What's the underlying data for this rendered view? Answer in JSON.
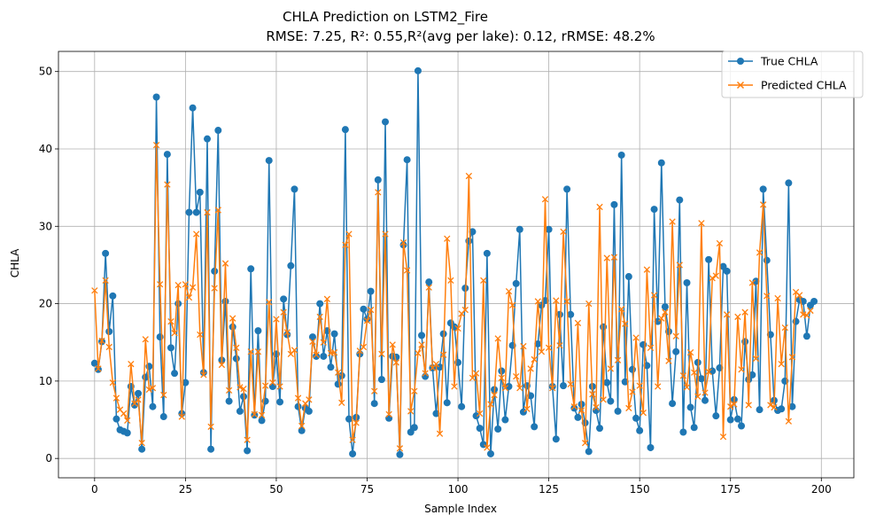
{
  "chart_data": {
    "type": "line",
    "title": "CHLA Prediction on LSTM2_Fire",
    "subtitle": "RMSE: 7.25, R²: 0.55,R²(avg per lake): 0.12, rRMSE: 48.2%",
    "xlabel": "Sample Index",
    "ylabel": "CHLA",
    "xlim": [
      -9.95,
      208.95
    ],
    "ylim": [
      -2.5,
      52.6
    ],
    "xticks": [
      0,
      25,
      50,
      75,
      100,
      125,
      150,
      175,
      200
    ],
    "yticks": [
      0,
      10,
      20,
      30,
      40,
      50
    ],
    "grid": true,
    "legend_position": "top-right",
    "series": [
      {
        "name": "True CHLA",
        "color": "#1f77b4",
        "marker": "circle",
        "values": [
          12.3,
          11.5,
          15.1,
          26.5,
          16.4,
          21.0,
          5.1,
          3.7,
          3.5,
          3.3,
          9.3,
          6.9,
          8.4,
          1.2,
          10.5,
          11.9,
          6.7,
          46.7,
          15.7,
          5.4,
          39.3,
          14.3,
          11.0,
          20.0,
          5.8,
          9.8,
          31.8,
          45.3,
          31.8,
          34.4,
          11.1,
          41.3,
          1.2,
          24.2,
          42.4,
          12.7,
          20.3,
          7.4,
          17.0,
          12.9,
          6.1,
          8.0,
          1.0,
          24.5,
          5.6,
          16.5,
          4.9,
          7.4,
          38.5,
          9.3,
          13.5,
          7.3,
          20.6,
          16.0,
          24.9,
          34.8,
          6.7,
          3.6,
          6.5,
          6.1,
          15.7,
          13.2,
          20.0,
          13.2,
          16.5,
          11.8,
          16.1,
          9.6,
          10.7,
          42.5,
          5.1,
          0.6,
          5.3,
          13.5,
          19.3,
          18.0,
          21.6,
          7.1,
          36.0,
          10.2,
          43.5,
          5.2,
          13.2,
          13.1,
          0.5,
          27.6,
          38.6,
          3.4,
          4.0,
          50.1,
          15.9,
          10.6,
          22.8,
          11.7,
          5.8,
          11.8,
          16.1,
          7.2,
          17.5,
          17.0,
          12.4,
          6.7,
          22.0,
          28.1,
          29.3,
          5.5,
          3.9,
          1.8,
          26.5,
          0.6,
          8.9,
          3.8,
          11.3,
          5.0,
          9.3,
          14.6,
          22.6,
          29.6,
          6.0,
          9.4,
          8.1,
          4.1,
          14.8,
          19.8,
          20.4,
          29.6,
          9.3,
          2.5,
          18.6,
          9.4,
          34.8,
          18.6,
          6.5,
          5.3,
          7.0,
          4.6,
          0.9,
          9.3,
          6.2,
          3.9,
          17.0,
          9.8,
          7.4,
          32.8,
          6.1,
          39.2,
          9.9,
          23.5,
          11.5,
          5.2,
          3.6,
          14.7,
          12.0,
          1.4,
          32.2,
          17.7,
          38.2,
          19.6,
          16.4,
          7.1,
          13.8,
          33.4,
          3.4,
          22.7,
          6.6,
          4.0,
          12.4,
          10.3,
          7.5,
          25.7,
          11.3,
          5.5,
          11.7,
          24.8,
          24.2,
          5.0,
          7.6,
          5.1,
          4.2,
          15.1,
          10.2,
          10.8,
          22.9,
          6.3,
          34.8,
          25.6,
          16.0,
          7.5,
          6.2,
          6.4,
          10.0,
          35.6,
          6.7,
          17.7,
          20.5,
          20.3,
          15.8,
          19.8,
          20.3
        ]
      },
      {
        "name": "Predicted CHLA",
        "color": "#ff7f0e",
        "marker": "x",
        "values": [
          21.7,
          11.6,
          15.2,
          23.0,
          14.4,
          9.8,
          7.8,
          6.3,
          5.8,
          4.9,
          12.2,
          7.1,
          7.6,
          2.0,
          15.4,
          8.9,
          9.1,
          40.5,
          22.5,
          8.2,
          35.4,
          17.7,
          16.2,
          22.4,
          5.4,
          22.5,
          20.8,
          22.1,
          29.0,
          16.0,
          10.8,
          31.8,
          4.1,
          22.0,
          32.1,
          12.1,
          25.2,
          8.8,
          18.1,
          14.3,
          9.2,
          9.0,
          2.4,
          13.8,
          5.7,
          13.8,
          5.6,
          9.4,
          20.2,
          9.8,
          18.0,
          9.3,
          18.9,
          16.3,
          13.5,
          14.0,
          7.8,
          4.2,
          7.1,
          7.6,
          15.1,
          13.4,
          18.3,
          15.0,
          20.6,
          13.6,
          13.7,
          11.1,
          7.2,
          27.6,
          29.0,
          2.4,
          4.6,
          13.9,
          14.4,
          17.8,
          19.2,
          8.7,
          34.4,
          13.5,
          29.0,
          5.7,
          14.7,
          12.4,
          1.3,
          27.9,
          24.3,
          6.1,
          8.7,
          13.6,
          14.7,
          11.0,
          22.1,
          11.7,
          12.2,
          3.2,
          13.4,
          28.4,
          23.0,
          9.3,
          16.8,
          18.7,
          19.2,
          36.5,
          10.4,
          11.0,
          5.8,
          23.0,
          1.4,
          7.0,
          8.2,
          15.5,
          10.4,
          9.1,
          21.6,
          19.8,
          10.6,
          9.1,
          14.5,
          6.4,
          11.6,
          12.8,
          20.3,
          13.8,
          33.5,
          14.3,
          9.1,
          20.4,
          14.6,
          29.3,
          20.3,
          9.6,
          6.7,
          17.5,
          6.2,
          2.0,
          20.0,
          8.3,
          6.6,
          32.5,
          7.6,
          25.9,
          11.6,
          26.0,
          12.7,
          19.3,
          17.4,
          6.5,
          8.6,
          15.6,
          9.4,
          5.9,
          24.4,
          14.3,
          21.1,
          9.3,
          18.1,
          18.9,
          12.6,
          30.6,
          15.8,
          25.0,
          10.7,
          9.2,
          13.7,
          11.1,
          8.0,
          30.4,
          8.5,
          11.2,
          23.3,
          23.6,
          27.8,
          2.8,
          18.6,
          6.7,
          7.0,
          18.3,
          11.5,
          18.9,
          6.9,
          22.7,
          12.9,
          26.6,
          32.8,
          21.0,
          6.9,
          6.6,
          20.7,
          12.2,
          16.9,
          4.8,
          13.1,
          21.5,
          21.1,
          18.6,
          18.5,
          19.1
        ]
      }
    ]
  }
}
